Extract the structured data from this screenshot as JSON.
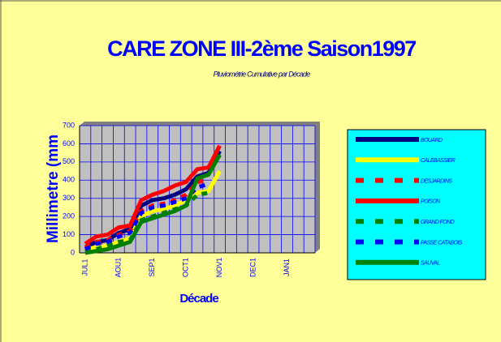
{
  "chart_data": {
    "type": "line",
    "title": "CARE ZONE III-2ème Saison1997",
    "subtitle": "Pluviométrie Cumulative par Décade",
    "x_label": "Décade",
    "y_label": "Millimetre (mm",
    "categories": [
      "JUL1",
      null,
      null,
      "AOU1",
      null,
      null,
      "SEP1",
      null,
      null,
      "OCT1",
      null,
      null,
      "NOV1",
      null,
      null,
      "DEC1",
      null,
      null,
      "JAN1",
      null,
      null
    ],
    "ylim": [
      0,
      700
    ],
    "yticks": [
      0,
      100,
      200,
      300,
      400,
      500,
      600,
      700
    ],
    "grid": true,
    "legend": "right",
    "series": [
      {
        "name": "BOUARD",
        "color": "#000080",
        "style": "solid",
        "values": [
          30,
          60,
          70,
          110,
          130,
          260,
          290,
          300,
          320,
          350,
          420,
          440,
          560,
          null,
          null,
          null,
          null,
          null,
          null,
          null,
          null
        ]
      },
      {
        "name": "CALEBASSIER",
        "color": "#ffff00",
        "style": "solid",
        "values": [
          20,
          30,
          40,
          60,
          80,
          200,
          230,
          240,
          260,
          290,
          330,
          340,
          450,
          null,
          null,
          null,
          null,
          null,
          null,
          null,
          null
        ]
      },
      {
        "name": "DESJARDINS",
        "color": "#ff0000",
        "style": "dashed",
        "values": [
          30,
          60,
          70,
          100,
          120,
          230,
          260,
          270,
          290,
          320,
          390,
          400,
          null,
          null,
          null,
          null,
          null,
          null,
          null,
          null,
          null
        ]
      },
      {
        "name": "POISON",
        "color": "#ff0000",
        "style": "solid",
        "values": [
          50,
          90,
          100,
          140,
          150,
          290,
          320,
          340,
          370,
          390,
          460,
          470,
          590,
          null,
          null,
          null,
          null,
          null,
          null,
          null,
          null
        ]
      },
      {
        "name": "GRAND FOND",
        "color": "#008000",
        "style": "dashed",
        "values": [
          10,
          20,
          40,
          60,
          70,
          180,
          200,
          220,
          240,
          260,
          320,
          330,
          null,
          null,
          null,
          null,
          null,
          null,
          null,
          null,
          null
        ]
      },
      {
        "name": "PASSE CATABOIS",
        "color": "#0000ff",
        "style": "dashed",
        "values": [
          20,
          50,
          60,
          90,
          110,
          220,
          250,
          260,
          280,
          300,
          360,
          380,
          null,
          null,
          null,
          null,
          null,
          null,
          null,
          null,
          null
        ]
      },
      {
        "name": "SAUVAL",
        "color": "#008000",
        "style": "solid",
        "values": [
          0,
          10,
          20,
          40,
          60,
          170,
          190,
          210,
          230,
          260,
          410,
          430,
          540,
          null,
          null,
          null,
          null,
          null,
          null,
          null,
          null
        ]
      }
    ]
  }
}
